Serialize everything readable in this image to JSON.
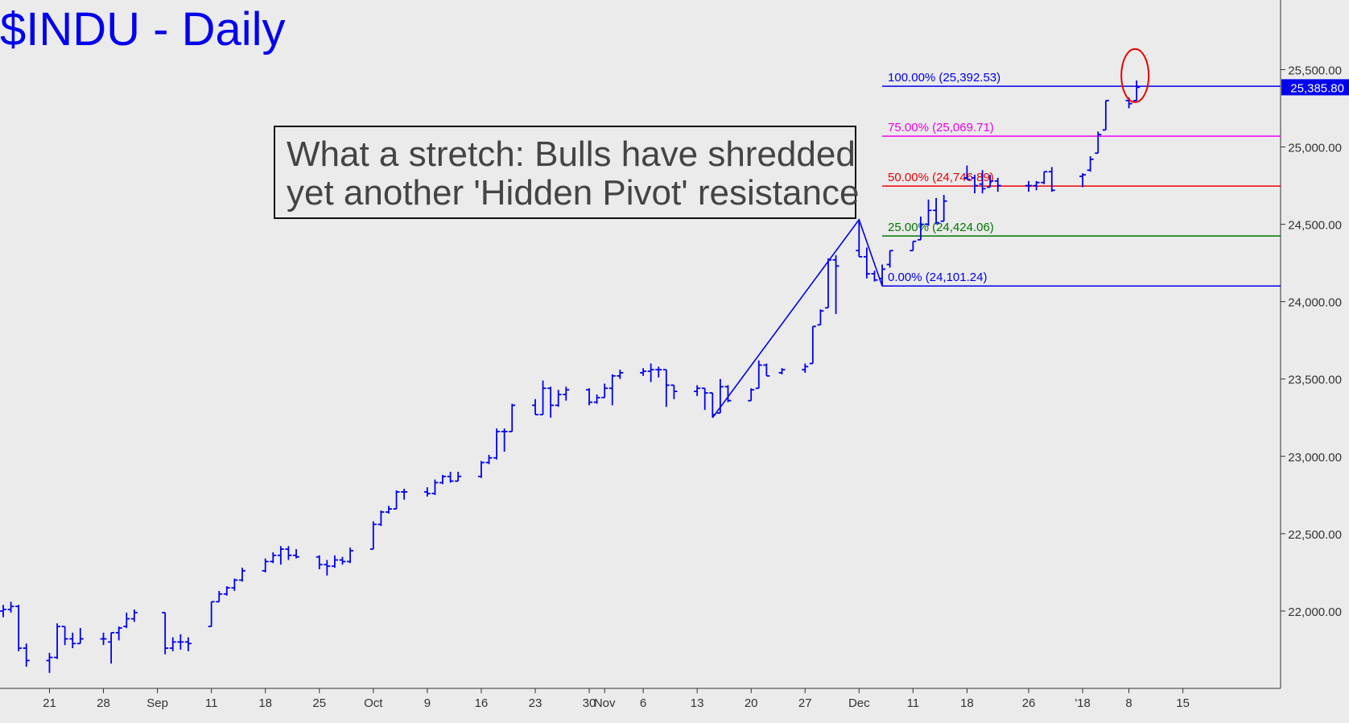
{
  "title": "$INDU - Daily",
  "callout": {
    "line1": "What a stretch: Bulls have shredded",
    "line2": "yet another 'Hidden Pivot' resistance"
  },
  "colors": {
    "background": "#ebebeb",
    "bars": "#0000ee",
    "fib_100": "#0000ee",
    "fib_75": "#ee00ee",
    "fib_50": "#ee0000",
    "fib_25": "#007700",
    "fib_0": "#0000ee",
    "circle": "#ee0000",
    "callout_text": "#444444"
  },
  "chart_data": {
    "type": "ohlc",
    "price_axis": {
      "min": 21500,
      "max": 25950,
      "ticks": [
        22000,
        22500,
        23000,
        23500,
        24000,
        24500,
        25000,
        25500
      ],
      "tick_labels": [
        "22,000.00",
        "22,500.00",
        "23,000.00",
        "23,500.00",
        "24,000.00",
        "24,500.00",
        "25,000.00",
        "25,500.00"
      ],
      "last_price": 25385.8,
      "last_price_label": "25,385.80"
    },
    "date_axis": {
      "first_date": "2017-08-15",
      "last_date": "2018-01-26",
      "ticks": [
        {
          "date": "2017-08-21",
          "label": "21"
        },
        {
          "date": "2017-08-28",
          "label": "28"
        },
        {
          "date": "2017-09-04",
          "label": "Sep"
        },
        {
          "date": "2017-09-11",
          "label": "11"
        },
        {
          "date": "2017-09-18",
          "label": "18"
        },
        {
          "date": "2017-09-25",
          "label": "25"
        },
        {
          "date": "2017-10-02",
          "label": "Oct"
        },
        {
          "date": "2017-10-09",
          "label": "9"
        },
        {
          "date": "2017-10-16",
          "label": "16"
        },
        {
          "date": "2017-10-23",
          "label": "23"
        },
        {
          "date": "2017-10-30",
          "label": "30"
        },
        {
          "date": "2017-11-01",
          "label": "Nov"
        },
        {
          "date": "2017-11-06",
          "label": "6"
        },
        {
          "date": "2017-11-13",
          "label": "13"
        },
        {
          "date": "2017-11-20",
          "label": "20"
        },
        {
          "date": "2017-11-27",
          "label": "27"
        },
        {
          "date": "2017-12-04",
          "label": "Dec"
        },
        {
          "date": "2017-12-11",
          "label": "11"
        },
        {
          "date": "2017-12-18",
          "label": "18"
        },
        {
          "date": "2017-12-26",
          "label": "26"
        },
        {
          "date": "2018-01-02",
          "label": "'18"
        },
        {
          "date": "2018-01-08",
          "label": "8"
        },
        {
          "date": "2018-01-15",
          "label": "15"
        }
      ]
    },
    "bars": [
      {
        "d": "2017-08-15",
        "o": 22000,
        "h": 22040,
        "l": 21960,
        "c": 22010
      },
      {
        "d": "2017-08-16",
        "o": 22010,
        "h": 22060,
        "l": 21990,
        "c": 22030
      },
      {
        "d": "2017-08-17",
        "o": 22030,
        "h": 22040,
        "l": 21740,
        "c": 21760
      },
      {
        "d": "2017-08-18",
        "o": 21760,
        "h": 21790,
        "l": 21640,
        "c": 21680
      },
      {
        "d": "2017-08-21",
        "o": 21680,
        "h": 21730,
        "l": 21600,
        "c": 21700
      },
      {
        "d": "2017-08-22",
        "o": 21700,
        "h": 21920,
        "l": 21690,
        "c": 21900
      },
      {
        "d": "2017-08-23",
        "o": 21900,
        "h": 21900,
        "l": 21780,
        "c": 21820
      },
      {
        "d": "2017-08-24",
        "o": 21820,
        "h": 21860,
        "l": 21760,
        "c": 21790
      },
      {
        "d": "2017-08-25",
        "o": 21790,
        "h": 21890,
        "l": 21790,
        "c": 21820
      },
      {
        "d": "2017-08-28",
        "o": 21820,
        "h": 21860,
        "l": 21780,
        "c": 21820
      },
      {
        "d": "2017-08-29",
        "o": 21800,
        "h": 21860,
        "l": 21660,
        "c": 21860
      },
      {
        "d": "2017-08-30",
        "o": 21860,
        "h": 21900,
        "l": 21810,
        "c": 21890
      },
      {
        "d": "2017-08-31",
        "o": 21900,
        "h": 21990,
        "l": 21890,
        "c": 21950
      },
      {
        "d": "2017-09-01",
        "o": 21950,
        "h": 22010,
        "l": 21930,
        "c": 21990
      },
      {
        "d": "2017-09-05",
        "o": 21990,
        "h": 21990,
        "l": 21720,
        "c": 21760
      },
      {
        "d": "2017-09-06",
        "o": 21760,
        "h": 21830,
        "l": 21740,
        "c": 21800
      },
      {
        "d": "2017-09-07",
        "o": 21800,
        "h": 21850,
        "l": 21750,
        "c": 21800
      },
      {
        "d": "2017-09-08",
        "o": 21800,
        "h": 21830,
        "l": 21740,
        "c": 21790
      },
      {
        "d": "2017-09-11",
        "o": 21900,
        "h": 22060,
        "l": 21900,
        "c": 22060
      },
      {
        "d": "2017-09-12",
        "o": 22060,
        "h": 22130,
        "l": 22060,
        "c": 22110
      },
      {
        "d": "2017-09-13",
        "o": 22110,
        "h": 22160,
        "l": 22100,
        "c": 22150
      },
      {
        "d": "2017-09-14",
        "o": 22150,
        "h": 22210,
        "l": 22130,
        "c": 22200
      },
      {
        "d": "2017-09-15",
        "o": 22200,
        "h": 22280,
        "l": 22190,
        "c": 22260
      },
      {
        "d": "2017-09-18",
        "o": 22260,
        "h": 22340,
        "l": 22250,
        "c": 22320
      },
      {
        "d": "2017-09-19",
        "o": 22320,
        "h": 22380,
        "l": 22310,
        "c": 22360
      },
      {
        "d": "2017-09-20",
        "o": 22360,
        "h": 22420,
        "l": 22300,
        "c": 22400
      },
      {
        "d": "2017-09-21",
        "o": 22400,
        "h": 22420,
        "l": 22330,
        "c": 22360
      },
      {
        "d": "2017-09-22",
        "o": 22360,
        "h": 22400,
        "l": 22340,
        "c": 22350
      },
      {
        "d": "2017-09-25",
        "o": 22350,
        "h": 22360,
        "l": 22270,
        "c": 22300
      },
      {
        "d": "2017-09-26",
        "o": 22300,
        "h": 22330,
        "l": 22230,
        "c": 22290
      },
      {
        "d": "2017-09-27",
        "o": 22290,
        "h": 22360,
        "l": 22280,
        "c": 22330
      },
      {
        "d": "2017-09-28",
        "o": 22330,
        "h": 22350,
        "l": 22300,
        "c": 22320
      },
      {
        "d": "2017-09-29",
        "o": 22320,
        "h": 22410,
        "l": 22310,
        "c": 22390
      },
      {
        "d": "2017-10-02",
        "o": 22400,
        "h": 22580,
        "l": 22400,
        "c": 22560
      },
      {
        "d": "2017-10-03",
        "o": 22560,
        "h": 22650,
        "l": 22550,
        "c": 22640
      },
      {
        "d": "2017-10-04",
        "o": 22640,
        "h": 22680,
        "l": 22630,
        "c": 22660
      },
      {
        "d": "2017-10-05",
        "o": 22660,
        "h": 22780,
        "l": 22660,
        "c": 22770
      },
      {
        "d": "2017-10-06",
        "o": 22770,
        "h": 22790,
        "l": 22720,
        "c": 22770
      },
      {
        "d": "2017-10-09",
        "o": 22770,
        "h": 22800,
        "l": 22740,
        "c": 22760
      },
      {
        "d": "2017-10-10",
        "o": 22760,
        "h": 22850,
        "l": 22750,
        "c": 22830
      },
      {
        "d": "2017-10-11",
        "o": 22830,
        "h": 22880,
        "l": 22820,
        "c": 22870
      },
      {
        "d": "2017-10-12",
        "o": 22870,
        "h": 22900,
        "l": 22830,
        "c": 22840
      },
      {
        "d": "2017-10-13",
        "o": 22840,
        "h": 22900,
        "l": 22840,
        "c": 22870
      },
      {
        "d": "2017-10-16",
        "o": 22870,
        "h": 22970,
        "l": 22860,
        "c": 22960
      },
      {
        "d": "2017-10-17",
        "o": 22960,
        "h": 23010,
        "l": 22950,
        "c": 22990
      },
      {
        "d": "2017-10-18",
        "o": 22990,
        "h": 23180,
        "l": 22980,
        "c": 23160
      },
      {
        "d": "2017-10-19",
        "o": 23160,
        "h": 23180,
        "l": 23030,
        "c": 23160
      },
      {
        "d": "2017-10-20",
        "o": 23160,
        "h": 23340,
        "l": 23160,
        "c": 23330
      },
      {
        "d": "2017-10-23",
        "o": 23330,
        "h": 23370,
        "l": 23270,
        "c": 23270
      },
      {
        "d": "2017-10-24",
        "o": 23270,
        "h": 23490,
        "l": 23270,
        "c": 23440
      },
      {
        "d": "2017-10-25",
        "o": 23440,
        "h": 23450,
        "l": 23250,
        "c": 23330
      },
      {
        "d": "2017-10-26",
        "o": 23330,
        "h": 23430,
        "l": 23320,
        "c": 23400
      },
      {
        "d": "2017-10-27",
        "o": 23400,
        "h": 23450,
        "l": 23360,
        "c": 23430
      },
      {
        "d": "2017-10-30",
        "o": 23430,
        "h": 23440,
        "l": 23330,
        "c": 23350
      },
      {
        "d": "2017-10-31",
        "o": 23350,
        "h": 23400,
        "l": 23340,
        "c": 23380
      },
      {
        "d": "2017-11-01",
        "o": 23380,
        "h": 23470,
        "l": 23380,
        "c": 23440
      },
      {
        "d": "2017-11-02",
        "o": 23440,
        "h": 23530,
        "l": 23330,
        "c": 23520
      },
      {
        "d": "2017-11-03",
        "o": 23520,
        "h": 23560,
        "l": 23500,
        "c": 23540
      },
      {
        "d": "2017-11-06",
        "o": 23540,
        "h": 23570,
        "l": 23520,
        "c": 23550
      },
      {
        "d": "2017-11-07",
        "o": 23550,
        "h": 23600,
        "l": 23480,
        "c": 23560
      },
      {
        "d": "2017-11-08",
        "o": 23560,
        "h": 23580,
        "l": 23510,
        "c": 23560
      },
      {
        "d": "2017-11-09",
        "o": 23560,
        "h": 23560,
        "l": 23320,
        "c": 23460
      },
      {
        "d": "2017-11-10",
        "o": 23460,
        "h": 23460,
        "l": 23370,
        "c": 23420
      },
      {
        "d": "2017-11-13",
        "o": 23420,
        "h": 23460,
        "l": 23390,
        "c": 23440
      },
      {
        "d": "2017-11-14",
        "o": 23440,
        "h": 23440,
        "l": 23300,
        "c": 23410
      },
      {
        "d": "2017-11-15",
        "o": 23410,
        "h": 23410,
        "l": 23250,
        "c": 23270
      },
      {
        "d": "2017-11-16",
        "o": 23280,
        "h": 23500,
        "l": 23280,
        "c": 23450
      },
      {
        "d": "2017-11-17",
        "o": 23450,
        "h": 23460,
        "l": 23350,
        "c": 23360
      },
      {
        "d": "2017-11-20",
        "o": 23360,
        "h": 23440,
        "l": 23360,
        "c": 23430
      },
      {
        "d": "2017-11-21",
        "o": 23440,
        "h": 23620,
        "l": 23440,
        "c": 23590
      },
      {
        "d": "2017-11-22",
        "o": 23590,
        "h": 23600,
        "l": 23520,
        "c": 23520
      },
      {
        "d": "2017-11-24",
        "o": 23540,
        "h": 23570,
        "l": 23530,
        "c": 23560
      },
      {
        "d": "2017-11-27",
        "o": 23560,
        "h": 23600,
        "l": 23540,
        "c": 23580
      },
      {
        "d": "2017-11-28",
        "o": 23600,
        "h": 23840,
        "l": 23600,
        "c": 23840
      },
      {
        "d": "2017-11-29",
        "o": 23850,
        "h": 23950,
        "l": 23850,
        "c": 23940
      },
      {
        "d": "2017-11-30",
        "o": 23960,
        "h": 24280,
        "l": 23960,
        "c": 24270
      },
      {
        "d": "2017-12-01",
        "o": 24270,
        "h": 24300,
        "l": 23920,
        "c": 24230
      },
      {
        "d": "2017-12-04",
        "o": 24330,
        "h": 24530,
        "l": 24290,
        "c": 24290
      },
      {
        "d": "2017-12-05",
        "o": 24290,
        "h": 24350,
        "l": 24150,
        "c": 24180
      },
      {
        "d": "2017-12-06",
        "o": 24180,
        "h": 24200,
        "l": 24130,
        "c": 24140
      },
      {
        "d": "2017-12-07",
        "o": 24150,
        "h": 24240,
        "l": 24100,
        "c": 24210
      },
      {
        "d": "2017-12-08",
        "o": 24240,
        "h": 24330,
        "l": 24220,
        "c": 24330
      },
      {
        "d": "2017-12-11",
        "o": 24330,
        "h": 24390,
        "l": 24330,
        "c": 24390
      },
      {
        "d": "2017-12-12",
        "o": 24400,
        "h": 24550,
        "l": 24400,
        "c": 24500
      },
      {
        "d": "2017-12-13",
        "o": 24500,
        "h": 24660,
        "l": 24490,
        "c": 24590
      },
      {
        "d": "2017-12-14",
        "o": 24590,
        "h": 24670,
        "l": 24500,
        "c": 24510
      },
      {
        "d": "2017-12-15",
        "o": 24520,
        "h": 24690,
        "l": 24520,
        "c": 24650
      },
      {
        "d": "2017-12-18",
        "o": 24800,
        "h": 24880,
        "l": 24790,
        "c": 24790
      },
      {
        "d": "2017-12-19",
        "o": 24800,
        "h": 24820,
        "l": 24700,
        "c": 24750
      },
      {
        "d": "2017-12-20",
        "o": 24760,
        "h": 24850,
        "l": 24700,
        "c": 24730
      },
      {
        "d": "2017-12-21",
        "o": 24740,
        "h": 24820,
        "l": 24740,
        "c": 24780
      },
      {
        "d": "2017-12-22",
        "o": 24780,
        "h": 24800,
        "l": 24710,
        "c": 24750
      },
      {
        "d": "2017-12-26",
        "o": 24750,
        "h": 24780,
        "l": 24710,
        "c": 24750
      },
      {
        "d": "2017-12-27",
        "o": 24750,
        "h": 24780,
        "l": 24720,
        "c": 24770
      },
      {
        "d": "2017-12-28",
        "o": 24770,
        "h": 24840,
        "l": 24760,
        "c": 24840
      },
      {
        "d": "2017-12-29",
        "o": 24840,
        "h": 24870,
        "l": 24710,
        "c": 24720
      },
      {
        "d": "2018-01-02",
        "o": 24810,
        "h": 24830,
        "l": 24740,
        "c": 24820
      },
      {
        "d": "2018-01-03",
        "o": 24850,
        "h": 24940,
        "l": 24840,
        "c": 24920
      },
      {
        "d": "2018-01-04",
        "o": 24960,
        "h": 25100,
        "l": 24960,
        "c": 25080
      },
      {
        "d": "2018-01-05",
        "o": 25110,
        "h": 25300,
        "l": 25110,
        "c": 25300
      },
      {
        "d": "2018-01-08",
        "o": 25300,
        "h": 25320,
        "l": 25250,
        "c": 25280
      },
      {
        "d": "2018-01-09",
        "o": 25300,
        "h": 25430,
        "l": 25300,
        "c": 25386
      }
    ],
    "fib_levels": [
      {
        "pct": "100.00%",
        "value": 25392.53,
        "label": "100.00% (25,392.53)",
        "color": "#0000ee"
      },
      {
        "pct": "75.00%",
        "value": 25069.71,
        "label": "75.00% (25,069.71)",
        "color": "#ee00ee"
      },
      {
        "pct": "50.00%",
        "value": 24746.89,
        "label": "50.00% (24,746.89)",
        "color": "#ee0000"
      },
      {
        "pct": "25.00%",
        "value": 24424.06,
        "label": "25.00% (24,424.06)",
        "color": "#007700"
      },
      {
        "pct": "0.00%",
        "value": 24101.24,
        "label": "0.00% (24,101.24)",
        "color": "#0000ee"
      }
    ],
    "fib_start_date": "2017-12-07",
    "abc_pattern": [
      {
        "date": "2017-11-15",
        "price": 23250
      },
      {
        "date": "2017-12-04",
        "price": 24530
      },
      {
        "date": "2017-12-07",
        "price": 24101.24
      }
    ],
    "highlight_circle": {
      "date": "2018-01-09",
      "price": 25420
    }
  }
}
